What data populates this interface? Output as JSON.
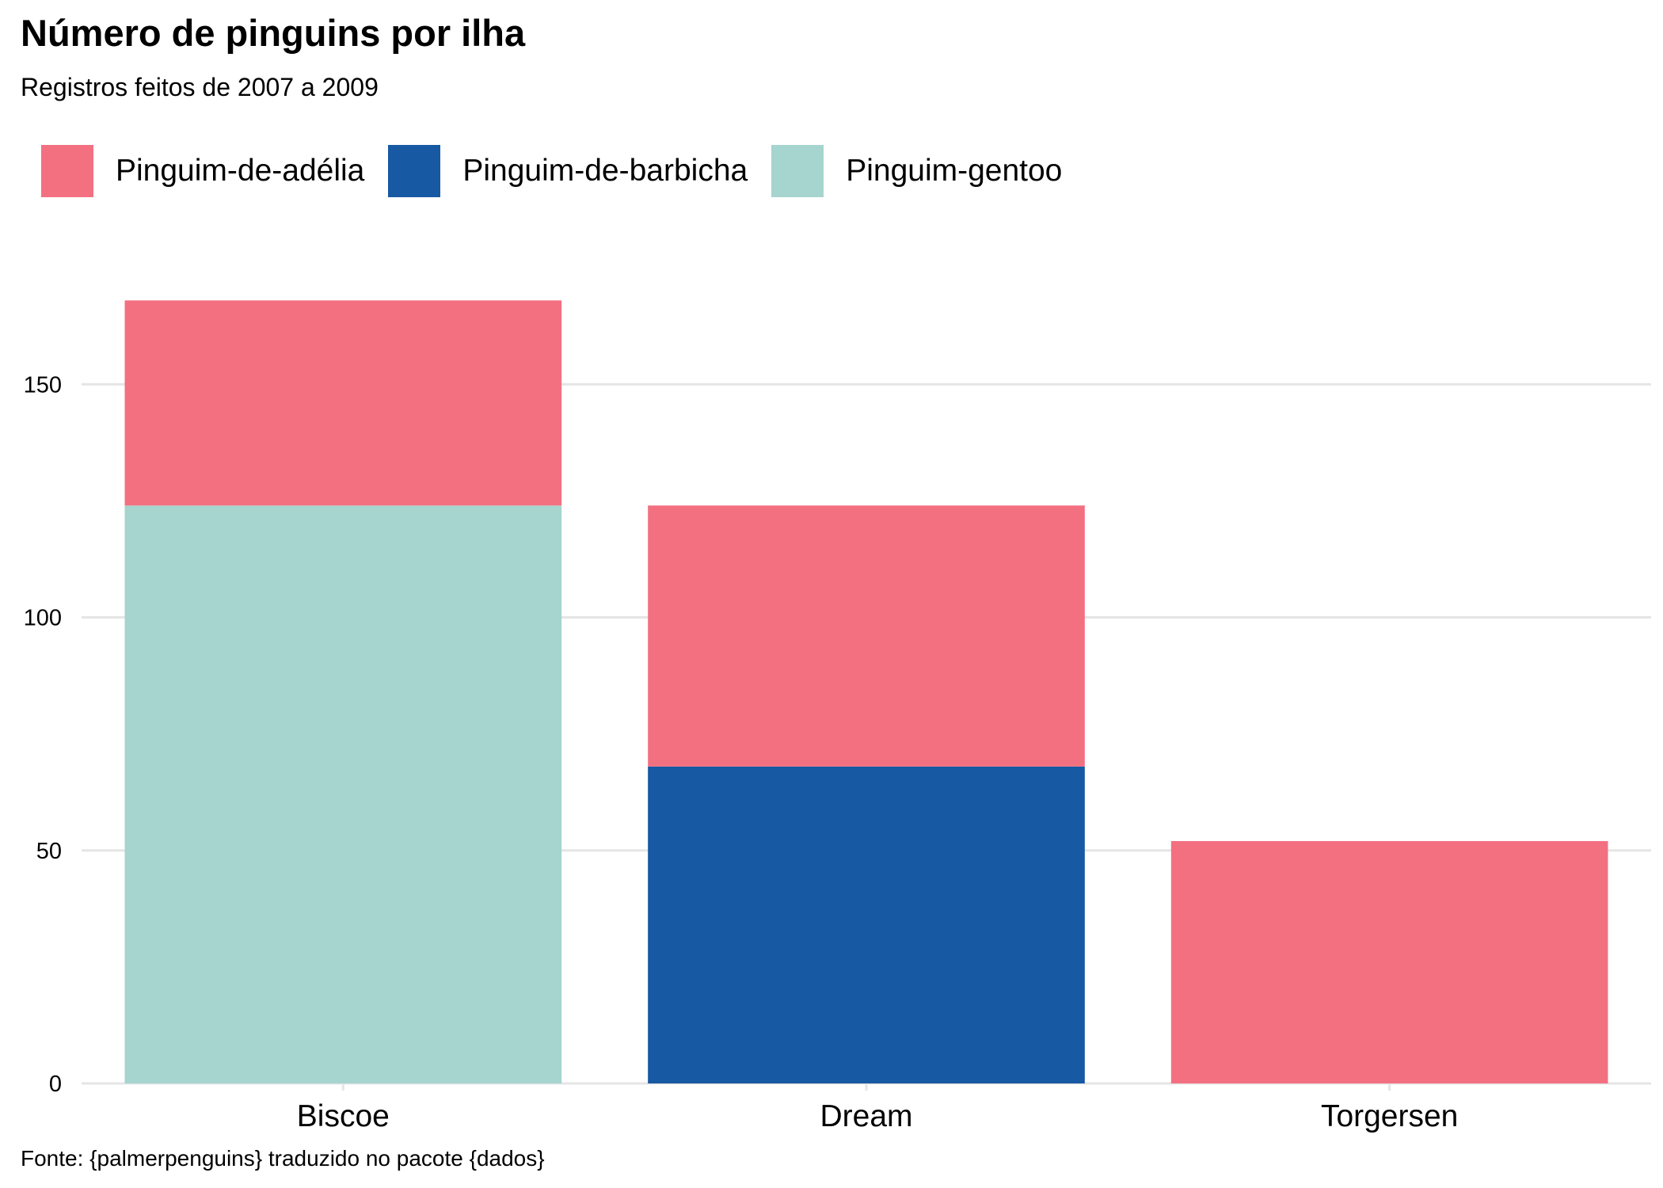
{
  "chart_data": {
    "type": "bar",
    "stacked": true,
    "title": "Número de pinguins por ilha",
    "subtitle": "Registros feitos de 2007 a 2009",
    "caption": "Fonte: {palmerpenguins} traduzido no pacote {dados}",
    "xlabel": "",
    "ylabel": "",
    "categories": [
      "Biscoe",
      "Dream",
      "Torgersen"
    ],
    "series": [
      {
        "name": "Pinguim-gentoo",
        "color": "#a6d4cf",
        "values": [
          124,
          0,
          0
        ]
      },
      {
        "name": "Pinguim-de-barbicha",
        "color": "#1759a2",
        "values": [
          0,
          68,
          0
        ]
      },
      {
        "name": "Pinguim-de-adélia",
        "color": "#f37081",
        "values": [
          44,
          56,
          52
        ]
      }
    ],
    "legend": {
      "position": "top-left",
      "items": [
        {
          "label": "Pinguim-de-adélia",
          "color": "#f37081"
        },
        {
          "label": "Pinguim-de-barbicha",
          "color": "#1759a2"
        },
        {
          "label": "Pinguim-gentoo",
          "color": "#a6d4cf"
        }
      ]
    },
    "yticks": [
      0,
      50,
      100,
      150
    ],
    "ylim": [
      0,
      168
    ],
    "grid": "horizontal",
    "grid_color": "#e5e5e5"
  }
}
